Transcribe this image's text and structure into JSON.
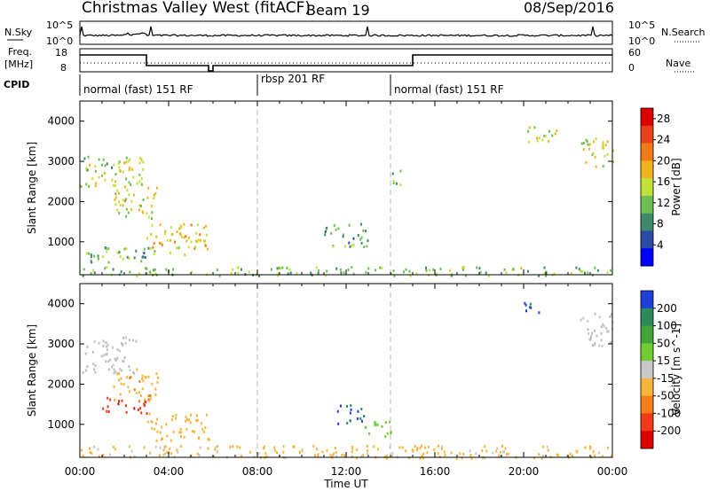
{
  "header": {
    "station": "Christmas Valley West (fitACF)",
    "beam": "Beam 19",
    "date": "08/Sep/2016"
  },
  "noise_panel": {
    "left_label": "N.Sky",
    "right_label": "N.Search",
    "left_ticks": [
      "10^5",
      "10^0"
    ],
    "right_ticks": [
      "10^5",
      "10^0"
    ]
  },
  "freq_panel": {
    "left_label_1": "Freq.",
    "left_label_2": "[MHz]",
    "left_ticks": [
      "18",
      "8"
    ],
    "right_label": "Nave",
    "right_ticks": [
      "60",
      "0"
    ]
  },
  "cpid": {
    "label": "CPID",
    "segments": [
      {
        "name": "normal (fast) 151 RF",
        "start_h": 0,
        "end_h": 8
      },
      {
        "name": "rbsp 201 RF",
        "start_h": 8,
        "end_h": 14
      },
      {
        "name": "normal (fast) 151 RF",
        "start_h": 14,
        "end_h": 24
      }
    ]
  },
  "colors": {
    "power_scale": [
      "#0000ff",
      "#2a4ca6",
      "#3c8a6a",
      "#6fbd55",
      "#c2e03a",
      "#f2b21e",
      "#f07a1a",
      "#e8421a",
      "#dd0000"
    ],
    "velocity_scale": [
      "#dd0000",
      "#f03a1a",
      "#f57c1a",
      "#f7b43a",
      "#c8c8c8",
      "#6fcc33",
      "#3fa338",
      "#2b8a5a",
      "#1f3fd8"
    ],
    "ground_scatter": "#bdbdbd"
  },
  "chart_data": [
    {
      "type": "heatmap",
      "title": "Power",
      "xlabel": "Time UT",
      "ylabel": "Slant Range [km]",
      "x_ticks": [
        "00:00",
        "04:00",
        "08:00",
        "12:00",
        "16:00",
        "20:00",
        "00:00"
      ],
      "x_range_hours": [
        0,
        24
      ],
      "y_ticks": [
        1000,
        2000,
        3000,
        4000
      ],
      "y_range_km": [
        180,
        4500
      ],
      "colorbar": {
        "label": "Power [dB]",
        "ticks": [
          4,
          8,
          12,
          16,
          20,
          24,
          28
        ],
        "range": [
          0,
          30
        ]
      },
      "regions": [
        {
          "t0": 0.0,
          "t1": 3.0,
          "r0": 2400,
          "r1": 3200,
          "level": 14
        },
        {
          "t0": 1.5,
          "t1": 3.5,
          "r0": 1600,
          "r1": 2400,
          "level": 16
        },
        {
          "t0": 3.0,
          "t1": 5.8,
          "r0": 700,
          "r1": 1500,
          "level": 18
        },
        {
          "t0": 0.2,
          "t1": 3.5,
          "r0": 500,
          "r1": 900,
          "level": 10
        },
        {
          "t0": 11.0,
          "t1": 13.0,
          "r0": 900,
          "r1": 1500,
          "level": 10
        },
        {
          "t0": 14.0,
          "t1": 14.5,
          "r0": 2300,
          "r1": 2800,
          "level": 12
        },
        {
          "t0": 20.0,
          "t1": 21.5,
          "r0": 3500,
          "r1": 3900,
          "level": 14
        },
        {
          "t0": 22.5,
          "t1": 24.0,
          "r0": 2900,
          "r1": 3600,
          "level": 16
        },
        {
          "t0": 0.0,
          "t1": 24.0,
          "r0": 180,
          "r1": 400,
          "level": 12
        }
      ]
    },
    {
      "type": "heatmap",
      "title": "Velocity",
      "xlabel": "Time UT",
      "ylabel": "Slant Range [km]",
      "x_ticks": [
        "00:00",
        "04:00",
        "08:00",
        "12:00",
        "16:00",
        "20:00",
        "00:00"
      ],
      "x_range_hours": [
        0,
        24
      ],
      "y_ticks": [
        1000,
        2000,
        3000,
        4000
      ],
      "y_range_km": [
        180,
        4500
      ],
      "colorbar": {
        "label": "Velocity [m s^-1]",
        "ticks": [
          "200",
          "100",
          "50",
          "15",
          "-15",
          "-50",
          "-100",
          "-200"
        ],
        "range": [
          -250,
          250
        ]
      },
      "regions": [
        {
          "t0": 0.0,
          "t1": 2.5,
          "r0": 2300,
          "r1": 3200,
          "level": 0
        },
        {
          "t0": 1.5,
          "t1": 3.5,
          "r0": 1600,
          "r1": 2400,
          "level": -70
        },
        {
          "t0": 3.0,
          "t1": 5.8,
          "r0": 600,
          "r1": 1300,
          "level": -60
        },
        {
          "t0": 1.0,
          "t1": 3.0,
          "r0": 1300,
          "r1": 1700,
          "level": -200
        },
        {
          "t0": 11.5,
          "t1": 12.8,
          "r0": 1000,
          "r1": 1500,
          "level": 220
        },
        {
          "t0": 12.5,
          "t1": 14.0,
          "r0": 700,
          "r1": 1100,
          "level": 60
        },
        {
          "t0": 20.0,
          "t1": 20.7,
          "r0": 3700,
          "r1": 4100,
          "level": 220
        },
        {
          "t0": 22.5,
          "t1": 24.0,
          "r0": 2900,
          "r1": 3800,
          "level": 0
        },
        {
          "t0": 0.0,
          "t1": 24.0,
          "r0": 180,
          "r1": 500,
          "level": -50
        }
      ]
    }
  ]
}
